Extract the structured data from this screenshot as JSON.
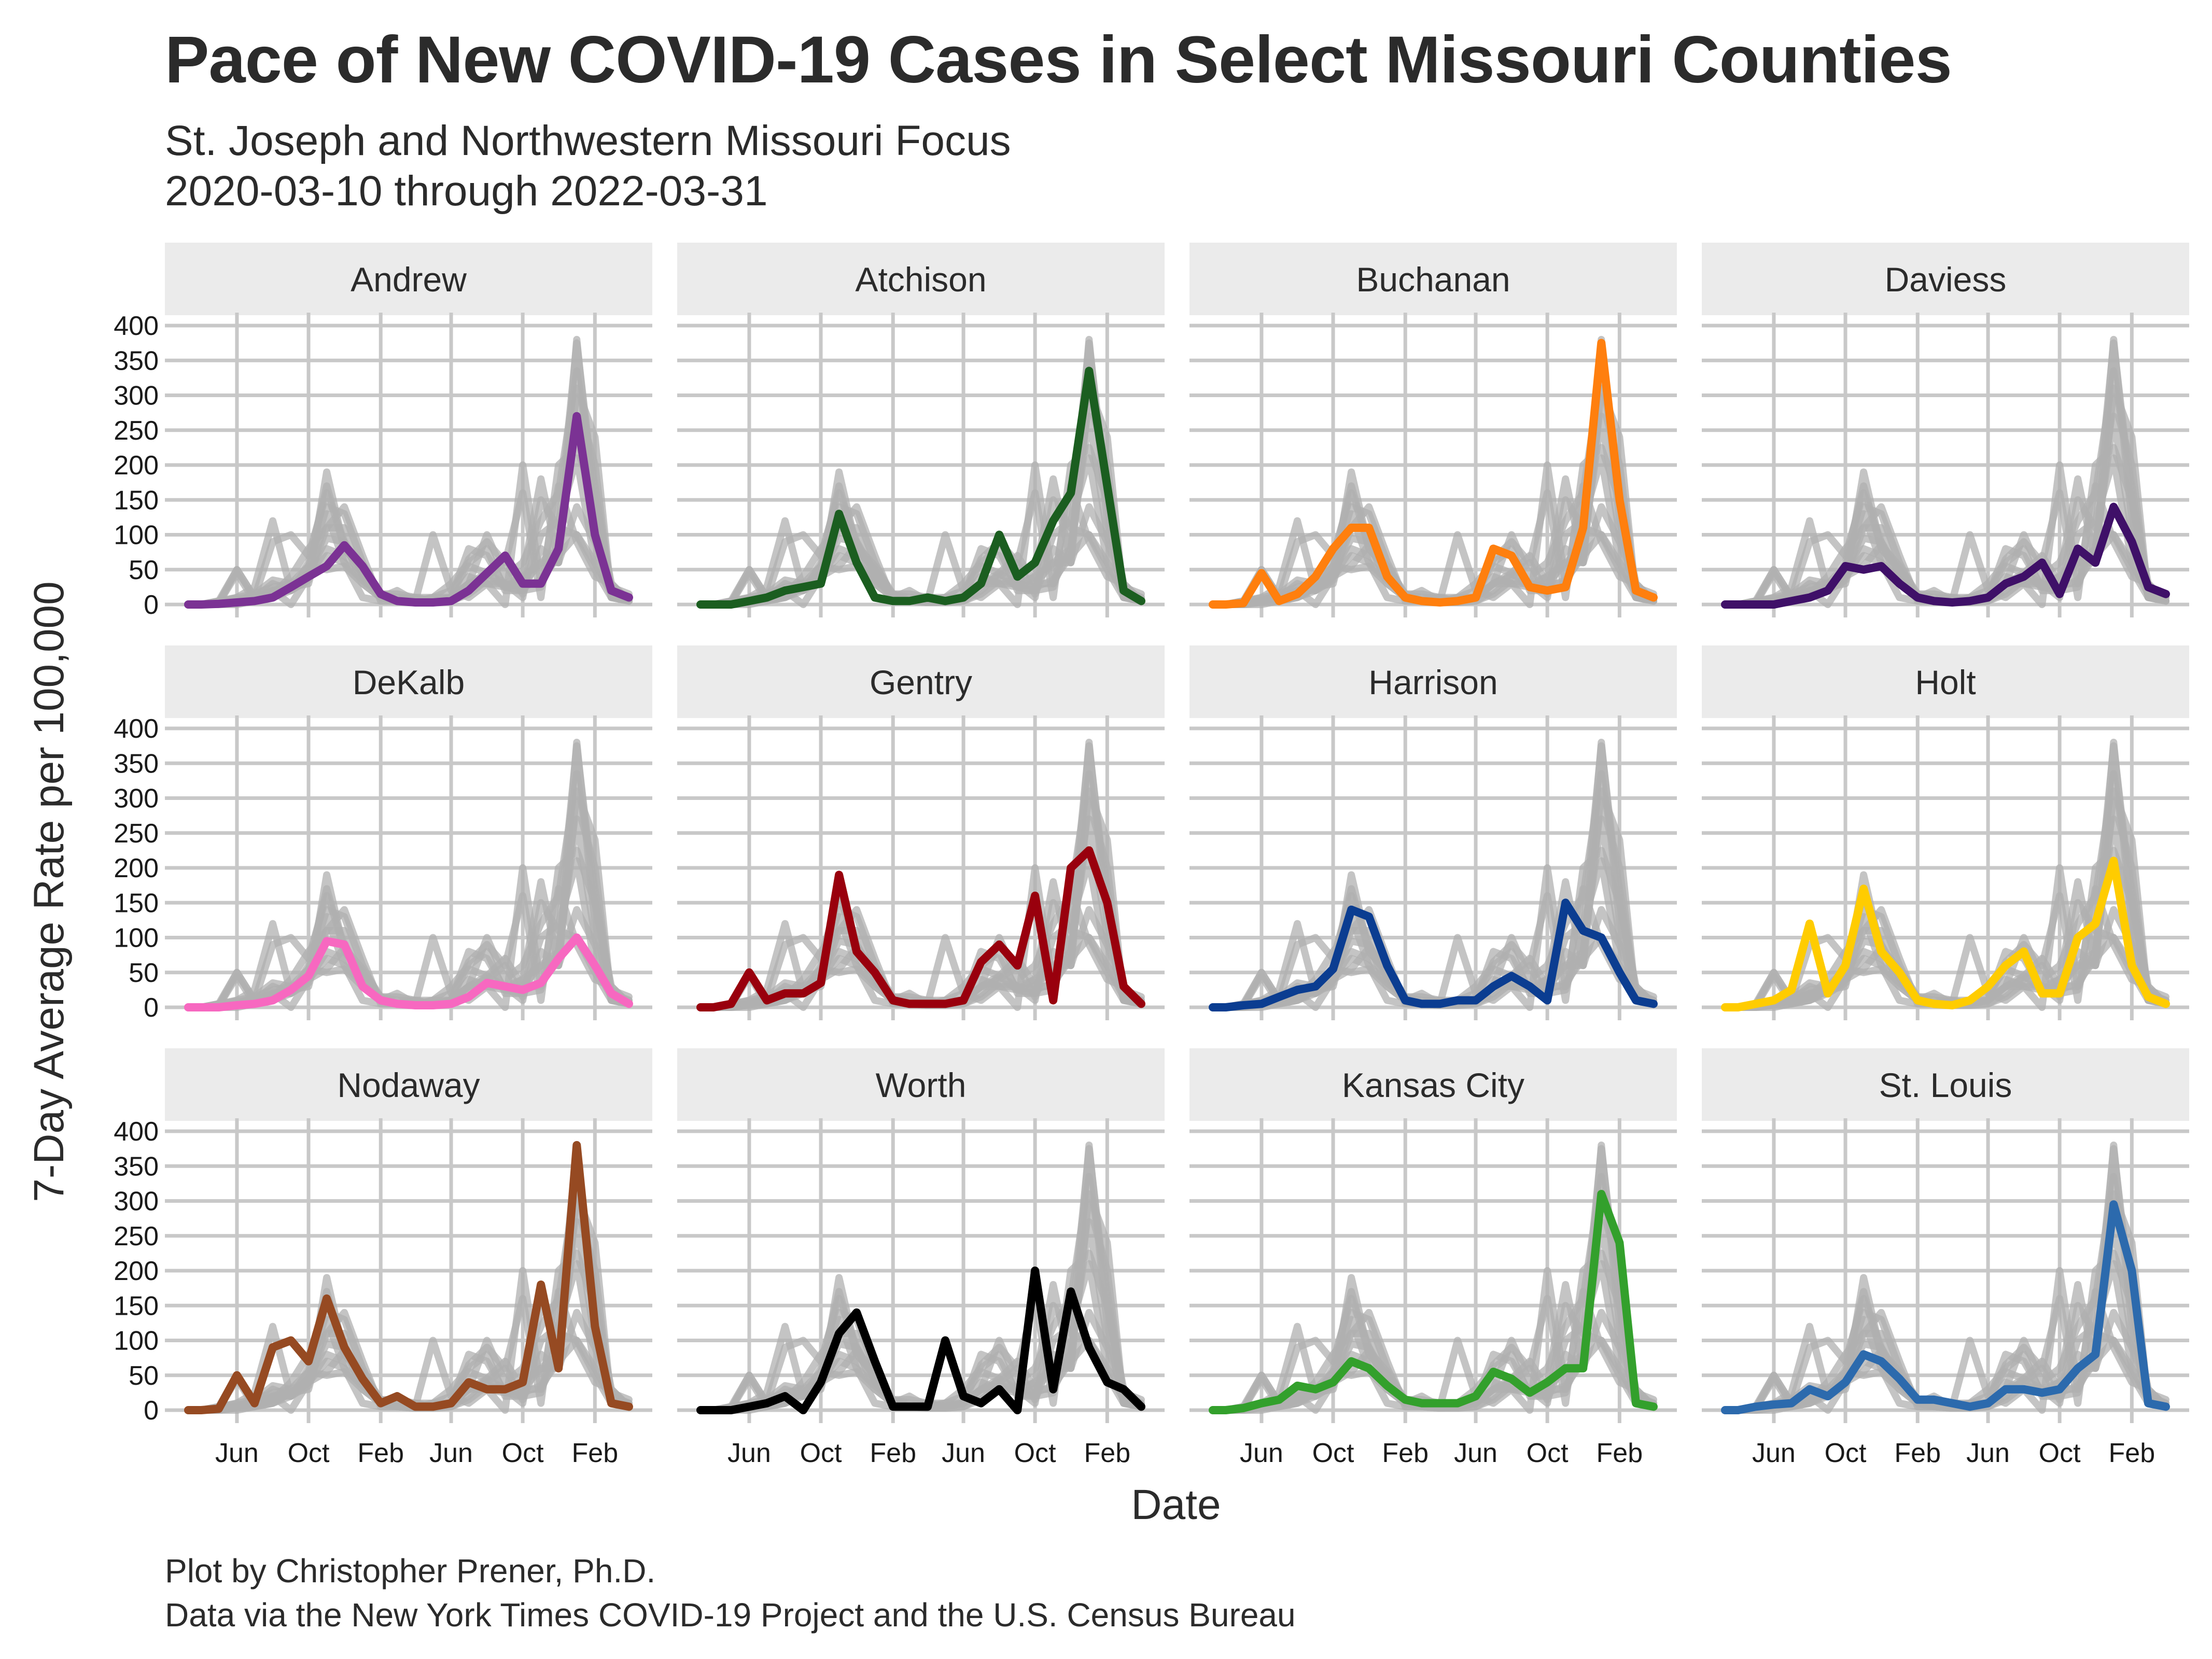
{
  "title": "Pace of New COVID-19 Cases in Select Missouri Counties",
  "subtitle_line1": "St. Joseph and Northwestern Missouri Focus",
  "subtitle_line2": "2020-03-10 through 2022-03-31",
  "caption_line1": "Plot by Christopher Prener, Ph.D.",
  "caption_line2": "Data via the New York Times COVID-19 Project and the U.S. Census Bureau",
  "chart_data": {
    "type": "line",
    "title": "Pace of New COVID-19 Cases in Select Missouri Counties",
    "xlabel": "Date",
    "ylabel": "7-Day Average Rate per 100,000",
    "xlim": [
      "2020-03-10",
      "2022-03-31"
    ],
    "ylim": [
      0,
      400
    ],
    "y_ticks": [
      0,
      50,
      100,
      150,
      200,
      250,
      300,
      350,
      400
    ],
    "x_ticks": [
      {
        "date": "2020-06-01",
        "label": "Jun"
      },
      {
        "date": "2020-10-01",
        "label": "Oct"
      },
      {
        "date": "2021-02-01",
        "label": "Feb"
      },
      {
        "date": "2021-06-01",
        "label": "Jun"
      },
      {
        "date": "2021-10-01",
        "label": "Oct"
      },
      {
        "date": "2022-02-01",
        "label": "Feb"
      }
    ],
    "background_color": "#b0b0b0",
    "x_dates": [
      "2020-03-10",
      "2020-04-01",
      "2020-05-01",
      "2020-06-01",
      "2020-07-01",
      "2020-08-01",
      "2020-09-01",
      "2020-10-01",
      "2020-11-01",
      "2020-12-01",
      "2021-01-01",
      "2021-02-01",
      "2021-03-01",
      "2021-04-01",
      "2021-05-01",
      "2021-06-01",
      "2021-07-01",
      "2021-08-01",
      "2021-09-01",
      "2021-10-01",
      "2021-11-01",
      "2021-12-01",
      "2022-01-01",
      "2022-02-01",
      "2022-03-01",
      "2022-03-31"
    ],
    "series": [
      {
        "name": "Andrew",
        "color": "#7b3294",
        "values": [
          0,
          0,
          1,
          3,
          5,
          10,
          25,
          40,
          55,
          85,
          55,
          15,
          5,
          3,
          3,
          5,
          20,
          45,
          70,
          30,
          30,
          80,
          270,
          100,
          20,
          10
        ]
      },
      {
        "name": "Atchison",
        "color": "#1b5e20",
        "values": [
          0,
          0,
          0,
          5,
          10,
          20,
          25,
          30,
          130,
          60,
          10,
          5,
          5,
          10,
          5,
          10,
          30,
          100,
          40,
          60,
          120,
          160,
          335,
          170,
          20,
          5
        ]
      },
      {
        "name": "Buchanan",
        "color": "#ff7f0e",
        "values": [
          0,
          0,
          2,
          45,
          5,
          15,
          40,
          80,
          110,
          110,
          40,
          10,
          5,
          3,
          5,
          10,
          80,
          70,
          25,
          20,
          25,
          110,
          375,
          150,
          20,
          10
        ]
      },
      {
        "name": "Daviess",
        "color": "#3f1068",
        "values": [
          0,
          0,
          0,
          0,
          5,
          10,
          20,
          55,
          50,
          55,
          30,
          10,
          5,
          3,
          5,
          10,
          30,
          40,
          60,
          15,
          80,
          60,
          140,
          90,
          25,
          15
        ]
      },
      {
        "name": "DeKalb",
        "color": "#f768c0",
        "values": [
          0,
          0,
          0,
          3,
          5,
          10,
          25,
          45,
          95,
          90,
          30,
          10,
          5,
          3,
          3,
          5,
          15,
          35,
          30,
          25,
          35,
          70,
          100,
          60,
          20,
          5
        ]
      },
      {
        "name": "Gentry",
        "color": "#99000d",
        "values": [
          0,
          0,
          5,
          50,
          10,
          20,
          20,
          35,
          190,
          80,
          50,
          10,
          5,
          5,
          5,
          10,
          65,
          90,
          60,
          160,
          10,
          200,
          225,
          150,
          30,
          5
        ]
      },
      {
        "name": "Harrison",
        "color": "#0b3d91",
        "values": [
          0,
          0,
          3,
          5,
          15,
          25,
          30,
          55,
          140,
          130,
          60,
          10,
          5,
          5,
          10,
          10,
          30,
          45,
          30,
          10,
          150,
          110,
          100,
          50,
          10,
          5
        ]
      },
      {
        "name": "Holt",
        "color": "#ffcc00",
        "values": [
          0,
          0,
          5,
          10,
          25,
          120,
          20,
          60,
          170,
          80,
          50,
          10,
          5,
          3,
          10,
          30,
          60,
          80,
          20,
          20,
          100,
          120,
          210,
          60,
          15,
          5
        ]
      },
      {
        "name": "Nodaway",
        "color": "#964a22",
        "values": [
          0,
          0,
          2,
          50,
          10,
          90,
          100,
          70,
          160,
          90,
          45,
          10,
          20,
          5,
          5,
          10,
          40,
          30,
          30,
          40,
          180,
          60,
          380,
          120,
          10,
          5
        ]
      },
      {
        "name": "Worth",
        "color": "#000000",
        "values": [
          0,
          0,
          0,
          5,
          10,
          20,
          0,
          40,
          110,
          140,
          70,
          5,
          5,
          5,
          100,
          20,
          10,
          30,
          0,
          200,
          30,
          170,
          90,
          40,
          30,
          5
        ]
      },
      {
        "name": "Kansas City",
        "color": "#33a02c",
        "values": [
          0,
          0,
          3,
          10,
          15,
          35,
          30,
          40,
          70,
          60,
          35,
          15,
          10,
          10,
          10,
          20,
          55,
          45,
          25,
          40,
          60,
          60,
          310,
          240,
          10,
          5
        ]
      },
      {
        "name": "St. Louis",
        "color": "#2c6aad",
        "values": [
          0,
          0,
          5,
          8,
          10,
          30,
          20,
          40,
          80,
          70,
          45,
          15,
          15,
          10,
          5,
          10,
          30,
          30,
          25,
          30,
          60,
          80,
          295,
          200,
          10,
          5
        ]
      }
    ]
  }
}
